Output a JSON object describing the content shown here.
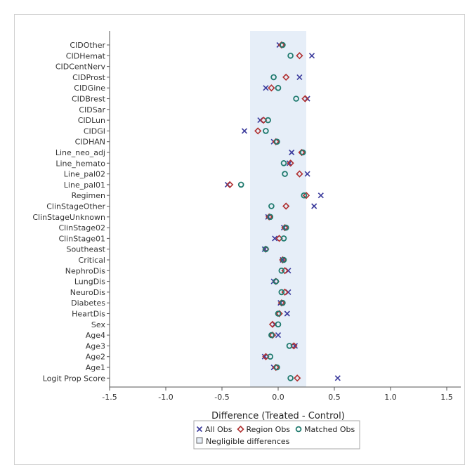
{
  "chart_data": {
    "type": "scatter",
    "title": "",
    "xlabel": "Difference (Treated - Control)",
    "ylabel": "",
    "xlim": [
      -1.5,
      1.5
    ],
    "xticks": [
      "-1.5",
      "-1.0",
      "-0.5",
      "0.0",
      "0.5",
      "1.0",
      "1.5"
    ],
    "negligible_band": [
      -0.25,
      0.25
    ],
    "categories": [
      "CIDOther",
      "CIDHemat",
      "CIDCentNerv",
      "CIDProst",
      "CIDGine",
      "CIDBrest",
      "CIDSar",
      "CIDLun",
      "CIDGI",
      "CIDHAN",
      "Line_neo_adj",
      "Line_hemato",
      "Line_pal02",
      "Line_pal01",
      "Regimen",
      "ClinStageOther",
      "ClinStageUnknown",
      "ClinStage02",
      "ClinStage01",
      "Southeast",
      "Critical",
      "NephroDis",
      "LungDis",
      "NeuroDis",
      "Diabetes",
      "HeartDis",
      "Sex",
      "Age4",
      "Age3",
      "Age2",
      "Age1",
      "Logit Prop Score"
    ],
    "series": [
      {
        "name": "All Obs",
        "marker": "x",
        "color": "#3a3a9c",
        "values": [
          0.01,
          0.3,
          null,
          0.19,
          -0.11,
          0.26,
          null,
          -0.16,
          -0.3,
          -0.04,
          0.12,
          0.1,
          0.26,
          -0.45,
          0.38,
          0.32,
          -0.09,
          0.05,
          -0.03,
          -0.12,
          0.04,
          0.09,
          -0.04,
          0.09,
          0.02,
          0.08,
          -0.03,
          0.0,
          0.15,
          -0.12,
          -0.04,
          0.53
        ]
      },
      {
        "name": "Region Obs",
        "marker": "diamond",
        "color": "#b03030",
        "values": [
          0.03,
          0.19,
          null,
          0.07,
          -0.06,
          0.24,
          null,
          -0.13,
          -0.18,
          -0.02,
          0.21,
          0.11,
          0.19,
          -0.43,
          0.25,
          0.07,
          -0.08,
          0.06,
          0.01,
          -0.11,
          0.04,
          0.06,
          -0.02,
          0.06,
          0.03,
          0.01,
          -0.05,
          -0.05,
          0.14,
          -0.11,
          -0.02,
          0.17
        ]
      },
      {
        "name": "Matched Obs",
        "marker": "circle",
        "color": "#1f7a6e",
        "values": [
          0.04,
          0.11,
          null,
          -0.04,
          0.0,
          0.16,
          null,
          -0.09,
          -0.11,
          -0.01,
          0.22,
          0.05,
          0.06,
          -0.33,
          0.23,
          -0.06,
          -0.07,
          0.07,
          0.05,
          -0.11,
          0.05,
          0.03,
          -0.02,
          0.03,
          0.04,
          0.0,
          0.0,
          -0.06,
          0.1,
          -0.07,
          -0.01,
          0.11
        ]
      }
    ],
    "legend": {
      "placement": "bottom-center",
      "band_entry": "Negligible differences"
    },
    "grid": false
  }
}
